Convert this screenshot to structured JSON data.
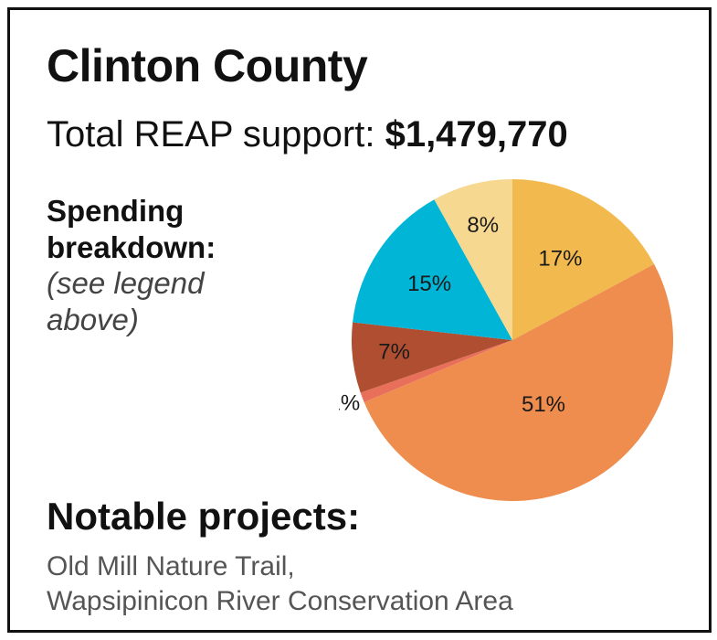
{
  "county": "Clinton County",
  "total": {
    "label": "Total REAP support:",
    "amount": "$1,479,770"
  },
  "breakdown": {
    "heading": "Spending breakdown:",
    "note": "(see legend above)"
  },
  "chart_data": {
    "type": "pie",
    "values": [
      17,
      51,
      1,
      7,
      15,
      8
    ],
    "labels": [
      "17%",
      "51%",
      "1%",
      "7%",
      "15%",
      "8%"
    ],
    "colors": [
      "#F2BA4E",
      "#EE8D4E",
      "#E8705A",
      "#B04E32",
      "#00B5D6",
      "#F6D890"
    ]
  },
  "notable": {
    "title": "Notable projects:",
    "projects": [
      "Old Mill Nature Trail,",
      "Wapsipinicon River Conservation Area"
    ]
  }
}
